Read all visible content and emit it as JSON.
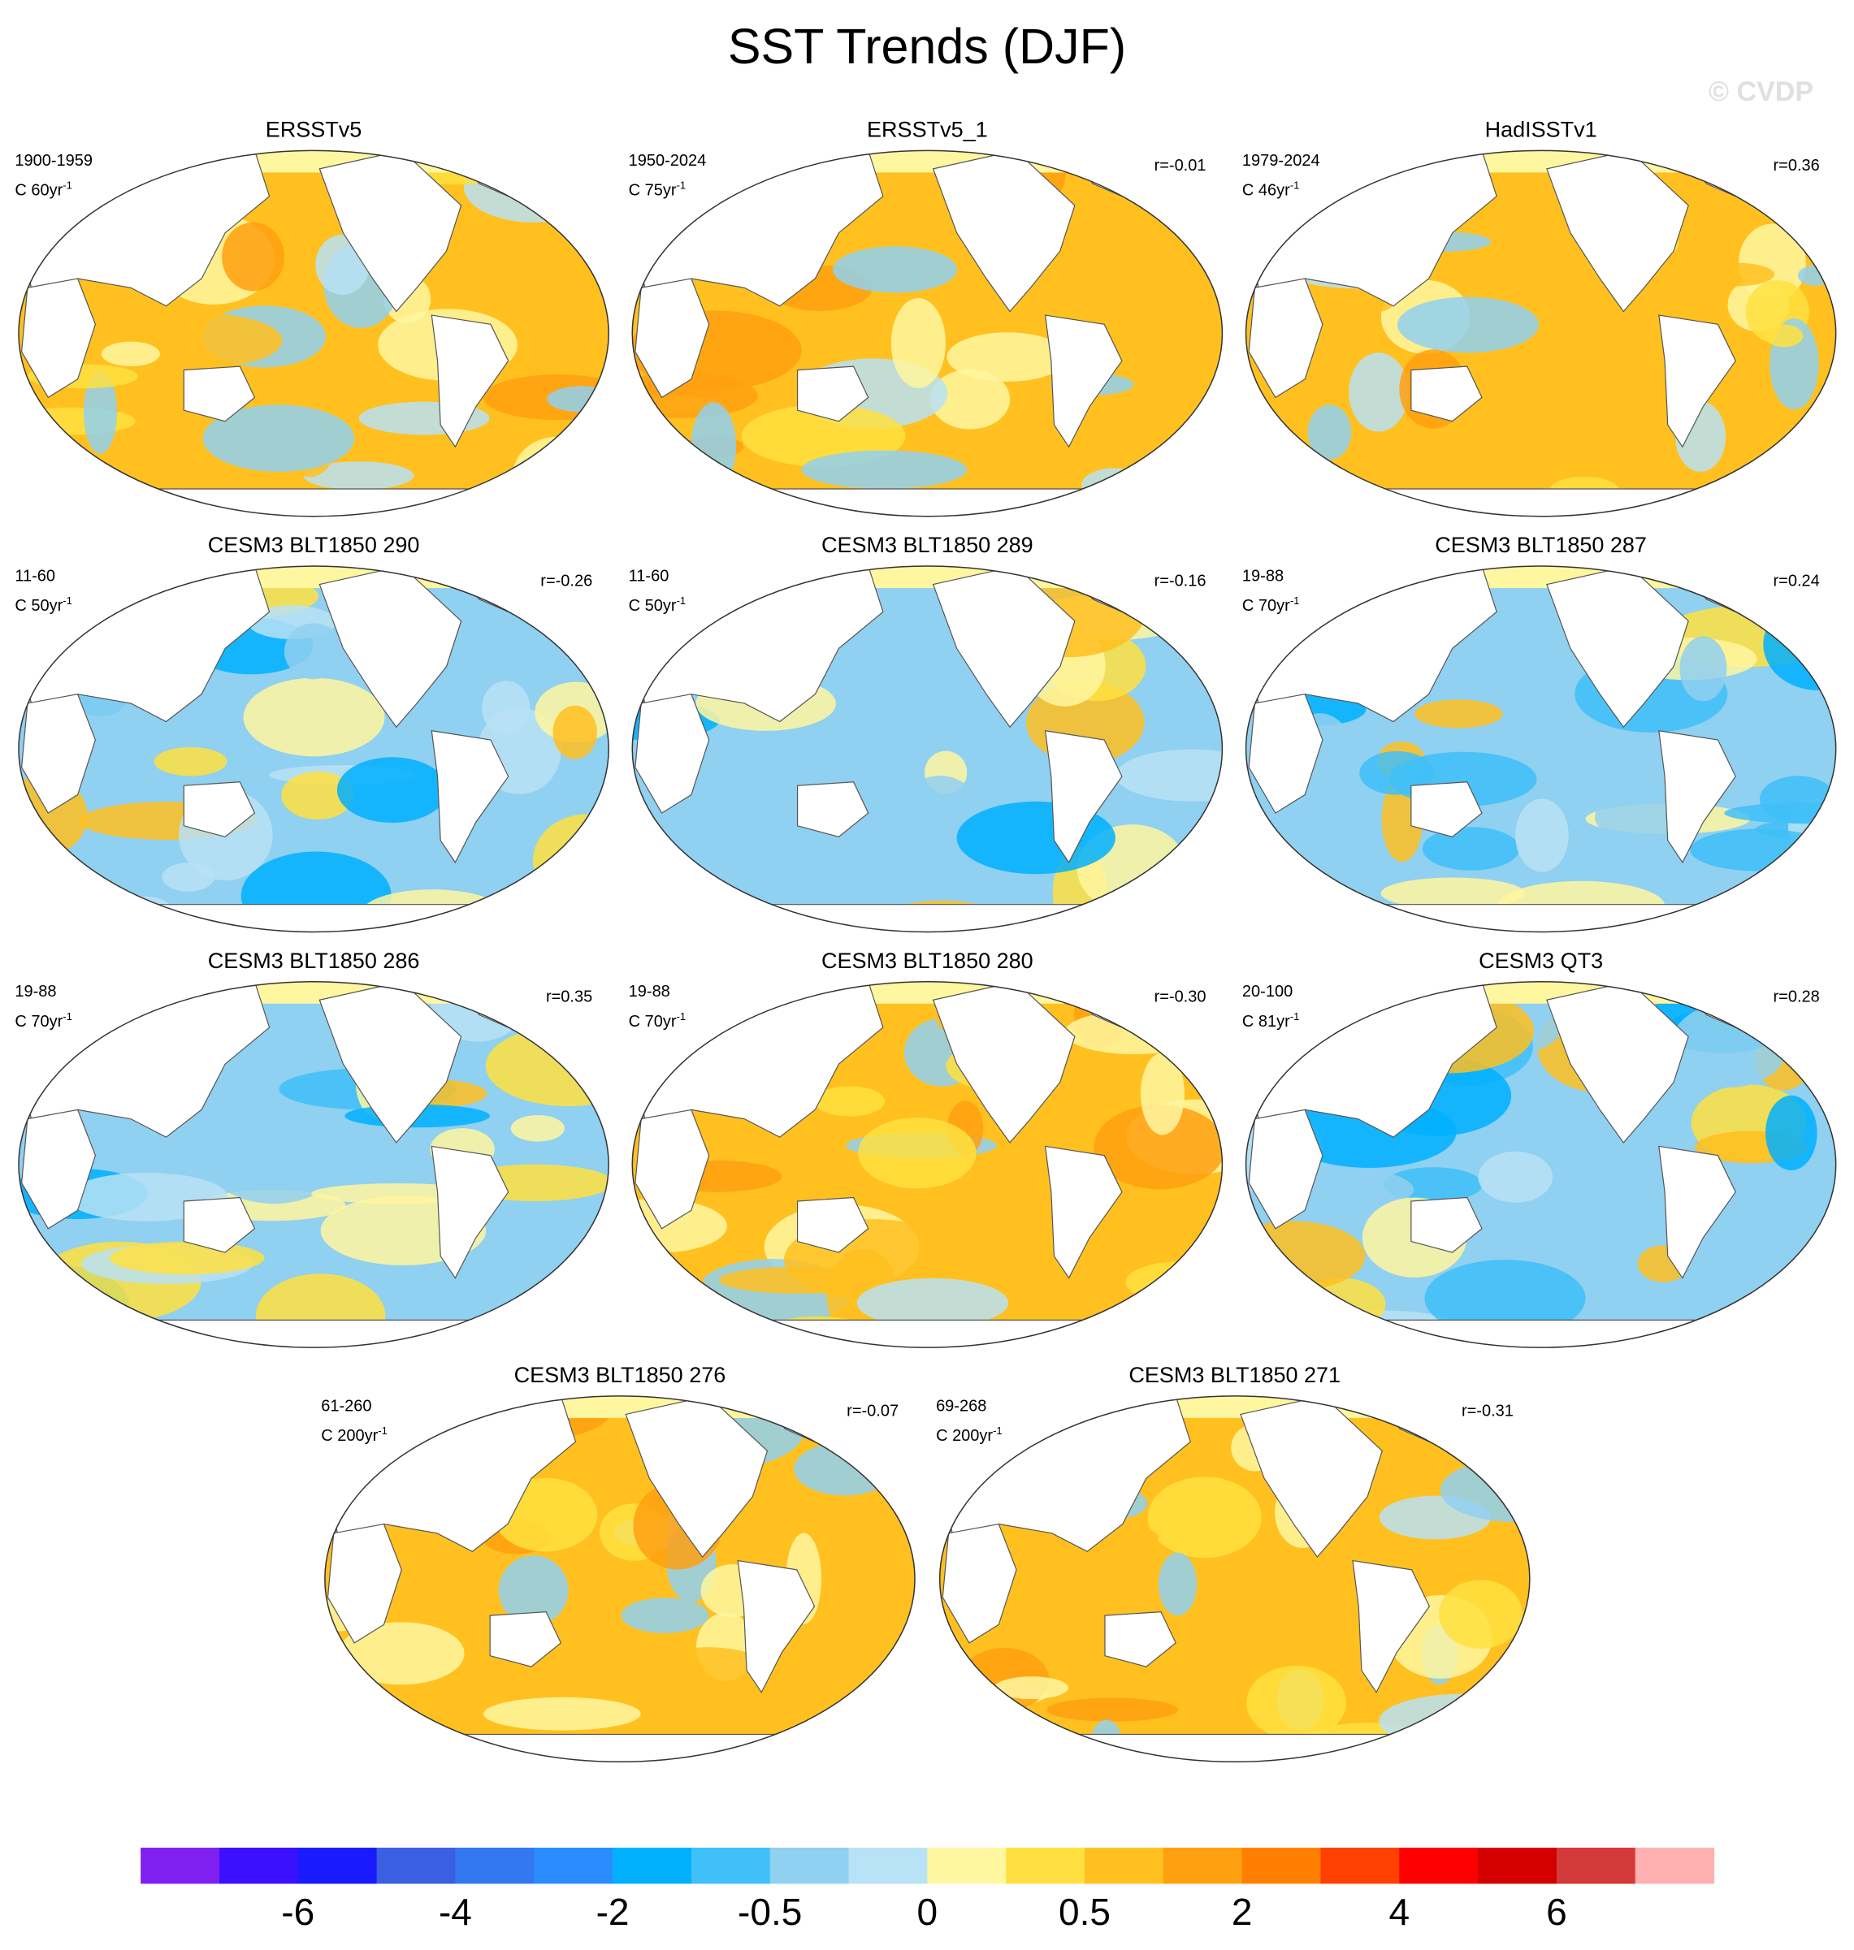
{
  "title": "SST Trends (DJF)",
  "watermark": "© CVDP",
  "panels": [
    {
      "title": "ERSSTv5",
      "period": "1900-1959",
      "unit": "C 60yr",
      "unit_exponent": "-1"
    },
    {
      "title": "ERSSTv5_1",
      "period": "1950-2024",
      "unit": "C 75yr",
      "unit_exponent": "-1",
      "r": "r=-0.01"
    },
    {
      "title": "HadISSTv1",
      "period": "1979-2024",
      "unit": "C 46yr",
      "unit_exponent": "-1",
      "r": "r=0.36"
    },
    {
      "title": "CESM3 BLT1850 290",
      "period": "11-60",
      "unit": "C 50yr",
      "unit_exponent": "-1",
      "r": "r=-0.26"
    },
    {
      "title": "CESM3 BLT1850 289",
      "period": "11-60",
      "unit": "C 50yr",
      "unit_exponent": "-1",
      "r": "r=-0.16"
    },
    {
      "title": "CESM3 BLT1850 287",
      "period": "19-88",
      "unit": "C 70yr",
      "unit_exponent": "-1",
      "r": "r=0.24"
    },
    {
      "title": "CESM3 BLT1850 286",
      "period": "19-88",
      "unit": "C 70yr",
      "unit_exponent": "-1",
      "r": "r=0.35"
    },
    {
      "title": "CESM3 BLT1850 280",
      "period": "19-88",
      "unit": "C 70yr",
      "unit_exponent": "-1",
      "r": "r=-0.30"
    },
    {
      "title": "CESM3 QT3",
      "period": "20-100",
      "unit": "C 81yr",
      "unit_exponent": "-1",
      "r": "r=0.28"
    },
    {
      "title": "CESM3 BLT1850 276",
      "period": "61-260",
      "unit": "C 200yr",
      "unit_exponent": "-1",
      "r": "r=-0.07"
    },
    {
      "title": "CESM3 BLT1850 271",
      "period": "69-268",
      "unit": "C 200yr",
      "unit_exponent": "-1",
      "r": "r=-0.31"
    }
  ],
  "colorbar": {
    "colors": [
      "#8020f0",
      "#3a10ff",
      "#1a1aff",
      "#3a5fe0",
      "#3378f0",
      "#2a8cff",
      "#00b0ff",
      "#40c0f8",
      "#90d0f0",
      "#b8e2f5",
      "#fff6a0",
      "#ffe040",
      "#ffc020",
      "#ffa010",
      "#ff8000",
      "#ff4000",
      "#ff0000",
      "#d40000",
      "#d43a3a",
      "#ffb0b0"
    ],
    "labels": [
      -6,
      -4,
      -2,
      -0.5,
      0,
      0.5,
      2,
      4,
      6
    ]
  }
}
